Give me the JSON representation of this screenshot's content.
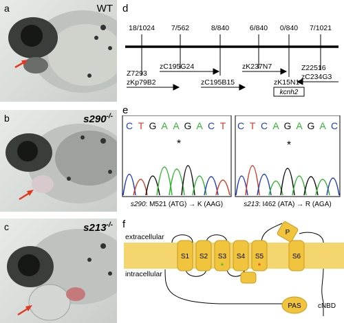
{
  "panels": {
    "a": {
      "letter": "a",
      "genotype": "WT"
    },
    "b": {
      "letter": "b",
      "genotype": "s290",
      "superscript": "-/-"
    },
    "c": {
      "letter": "c",
      "genotype": "s213",
      "superscript": "-/-"
    },
    "d": {
      "letter": "d",
      "recombinants": [
        "18/1024",
        "7/562",
        "8/840",
        "6/840",
        "0/840",
        "7/1021"
      ],
      "markers_lower": [
        "Z7293",
        "zKp79B2",
        "zC195G24",
        "zC195B15",
        "zK237N7",
        "zK15N1",
        "Z22516",
        "zC234G3"
      ],
      "gene": "kcnh2"
    },
    "e": {
      "letter": "e",
      "left_sequence": [
        "C",
        "T",
        "G",
        "A",
        "A",
        "G",
        "A",
        "C",
        "T"
      ],
      "right_sequence": [
        "C",
        "T",
        "C",
        "A",
        "G",
        "A",
        "G",
        "A",
        "C"
      ],
      "left_caption_allele": "s290",
      "left_caption_change": ": M521 (ATG) → K (AAG)",
      "right_caption_allele": "s213",
      "right_caption_change": ": I462 (ATA) → R (AGA)",
      "mutation_marker": "*"
    },
    "f": {
      "letter": "f",
      "extracellular": "extracellular",
      "intracellular": "intracellular",
      "segments": [
        "S1",
        "S2",
        "S3",
        "S4",
        "S5",
        "S6"
      ],
      "pore": "P",
      "pas": "PAS",
      "cnbd": "cNBD",
      "star": "*"
    }
  },
  "colors": {
    "C": "#1f3fbf",
    "T": "#d63a24",
    "G": "#111111",
    "A": "#2fb52f",
    "membrane": "#f5d56e",
    "segment": "#f0c43c",
    "arrow_red": "#e2381e"
  }
}
